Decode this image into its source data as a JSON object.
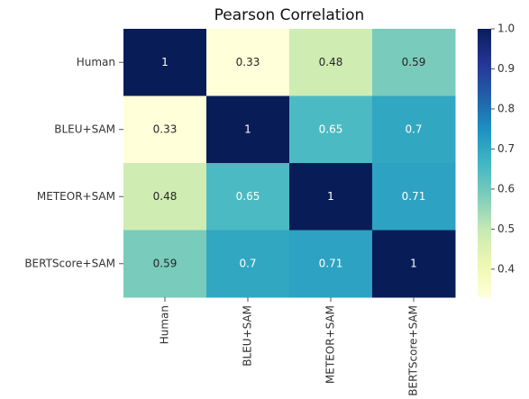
{
  "chart_data": {
    "type": "heatmap",
    "title": "Pearson Correlation",
    "x_categories": [
      "Human",
      "BLEU+SAM",
      "METEOR+SAM",
      "BERTScore+SAM"
    ],
    "y_categories": [
      "Human",
      "BLEU+SAM",
      "METEOR+SAM",
      "BERTScore+SAM"
    ],
    "values": [
      [
        1,
        0.33,
        0.48,
        0.59
      ],
      [
        0.33,
        1,
        0.65,
        0.7
      ],
      [
        0.48,
        0.65,
        1,
        0.71
      ],
      [
        0.59,
        0.7,
        0.71,
        1
      ]
    ],
    "colormap": "YlGnBu",
    "clim": [
      0.33,
      1
    ],
    "cticks": [
      0.4,
      0.5,
      0.6,
      0.7,
      0.8,
      0.9,
      {
        "value": 1,
        "label": "1.0"
      }
    ]
  }
}
